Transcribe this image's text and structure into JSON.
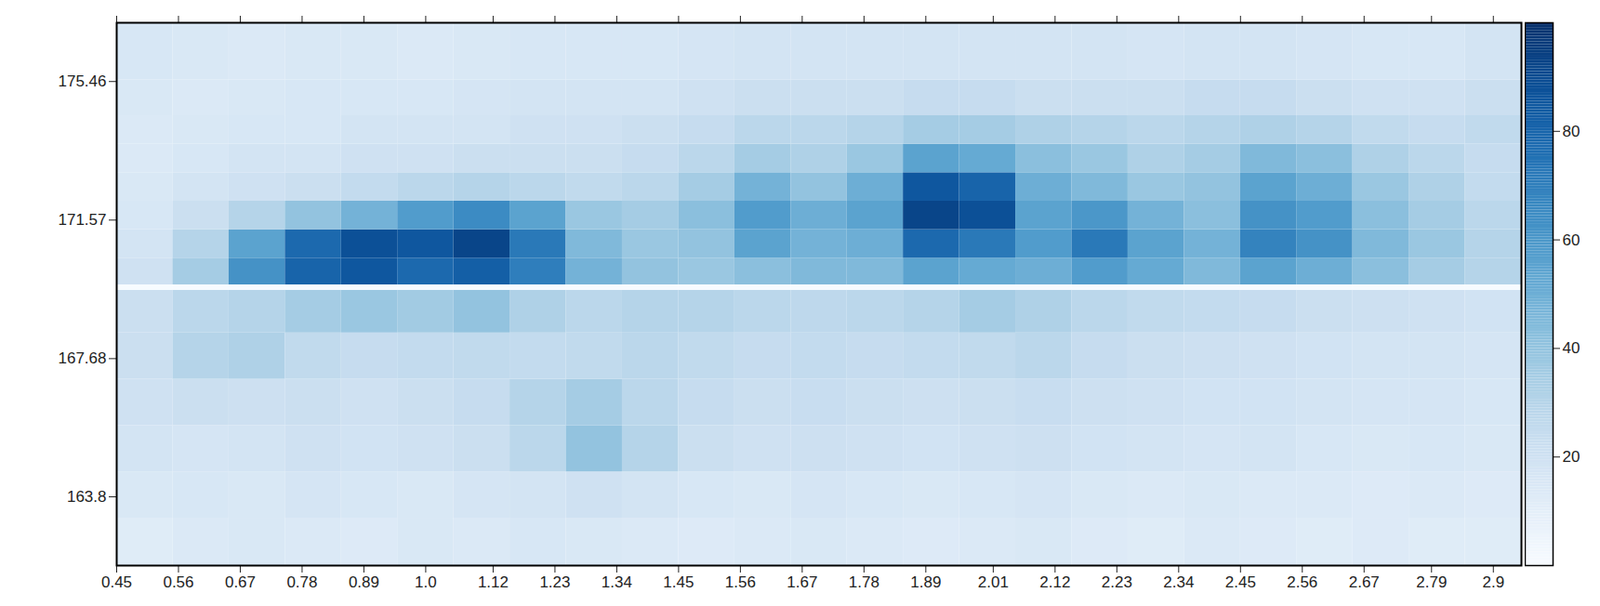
{
  "chart_data": {
    "type": "heatmap",
    "xlim": [
      0.45,
      2.95
    ],
    "ylim": [
      161.87,
      177.11
    ],
    "xticks": [
      0.45,
      0.56,
      0.67,
      0.78,
      0.89,
      {
        "value": 1.0,
        "label": "1.0"
      },
      1.12,
      1.23,
      1.34,
      1.45,
      1.56,
      1.67,
      1.78,
      1.89,
      2.01,
      2.12,
      2.23,
      2.34,
      2.45,
      2.56,
      2.67,
      2.79,
      2.9
    ],
    "yticks": [
      163.8,
      167.68,
      171.57,
      175.46
    ],
    "x_edges": [
      0.45,
      0.55,
      0.65,
      0.75,
      0.85,
      0.95,
      1.05,
      1.15,
      1.25,
      1.35,
      1.45,
      1.55,
      1.65,
      1.75,
      1.85,
      1.95,
      2.05,
      2.15,
      2.25,
      2.35,
      2.45,
      2.55,
      2.65,
      2.75,
      2.85,
      2.95
    ],
    "y_edges": [
      161.87,
      163.2,
      164.5,
      165.8,
      167.1,
      168.4,
      169.6,
      169.75,
      170.5,
      171.3,
      172.1,
      172.9,
      173.7,
      174.5,
      175.5,
      177.11
    ],
    "values": [
      [
        12,
        14,
        15,
        14,
        13,
        15,
        14,
        16,
        15,
        14,
        13,
        14,
        15,
        14,
        13,
        14,
        15,
        13,
        12,
        14,
        13,
        12,
        13,
        12,
        12
      ],
      [
        15,
        16,
        15,
        17,
        16,
        15,
        17,
        18,
        20,
        18,
        16,
        15,
        17,
        16,
        15,
        16,
        17,
        15,
        14,
        15,
        14,
        14,
        13,
        14,
        13
      ],
      [
        18,
        17,
        18,
        20,
        19,
        20,
        22,
        28,
        40,
        30,
        22,
        20,
        21,
        20,
        19,
        20,
        21,
        19,
        18,
        17,
        18,
        16,
        15,
        16,
        15
      ],
      [
        20,
        22,
        21,
        22,
        20,
        22,
        24,
        30,
        35,
        28,
        24,
        22,
        23,
        22,
        21,
        22,
        23,
        21,
        20,
        19,
        19,
        18,
        17,
        17,
        16
      ],
      [
        22,
        30,
        32,
        26,
        24,
        25,
        26,
        25,
        26,
        28,
        26,
        24,
        25,
        24,
        25,
        26,
        28,
        24,
        22,
        21,
        20,
        19,
        18,
        18,
        17
      ],
      [
        22,
        28,
        30,
        35,
        38,
        36,
        40,
        32,
        28,
        30,
        30,
        28,
        27,
        28,
        30,
        35,
        32,
        28,
        26,
        25,
        24,
        22,
        21,
        20,
        19
      ],
      [
        0,
        0,
        0,
        0,
        0,
        0,
        0,
        0,
        0,
        0,
        0,
        0,
        0,
        0,
        0,
        0,
        0,
        0,
        0,
        0,
        0,
        0,
        0,
        0,
        0
      ],
      [
        20,
        35,
        62,
        80,
        85,
        78,
        82,
        70,
        48,
        40,
        38,
        42,
        45,
        45,
        55,
        52,
        50,
        58,
        52,
        45,
        55,
        50,
        42,
        35,
        30
      ],
      [
        18,
        30,
        55,
        78,
        88,
        85,
        92,
        72,
        45,
        38,
        40,
        55,
        48,
        50,
        78,
        72,
        58,
        72,
        55,
        48,
        68,
        62,
        45,
        38,
        30
      ],
      [
        16,
        22,
        30,
        40,
        48,
        58,
        65,
        55,
        38,
        35,
        42,
        58,
        50,
        55,
        92,
        88,
        55,
        60,
        48,
        42,
        62,
        58,
        42,
        35,
        28
      ],
      [
        15,
        18,
        20,
        22,
        25,
        28,
        30,
        28,
        26,
        28,
        35,
        48,
        40,
        50,
        85,
        80,
        50,
        45,
        38,
        40,
        55,
        50,
        38,
        32,
        25
      ],
      [
        14,
        16,
        18,
        18,
        20,
        20,
        22,
        22,
        22,
        24,
        28,
        35,
        32,
        38,
        55,
        52,
        42,
        38,
        32,
        35,
        45,
        42,
        32,
        28,
        24
      ],
      [
        14,
        15,
        16,
        16,
        18,
        18,
        18,
        20,
        20,
        22,
        24,
        28,
        28,
        30,
        35,
        35,
        32,
        30,
        28,
        30,
        32,
        30,
        26,
        24,
        26
      ],
      [
        15,
        14,
        15,
        16,
        16,
        16,
        17,
        18,
        18,
        18,
        20,
        22,
        22,
        22,
        24,
        24,
        22,
        22,
        22,
        24,
        24,
        22,
        20,
        20,
        22
      ],
      [
        16,
        15,
        14,
        15,
        15,
        14,
        15,
        16,
        16,
        16,
        17,
        18,
        18,
        18,
        18,
        18,
        18,
        18,
        17,
        18,
        18,
        17,
        16,
        16,
        18
      ]
    ],
    "colorbar_range": [
      0,
      100
    ],
    "colorbar_ticks": [
      20,
      40,
      60,
      80
    ]
  }
}
